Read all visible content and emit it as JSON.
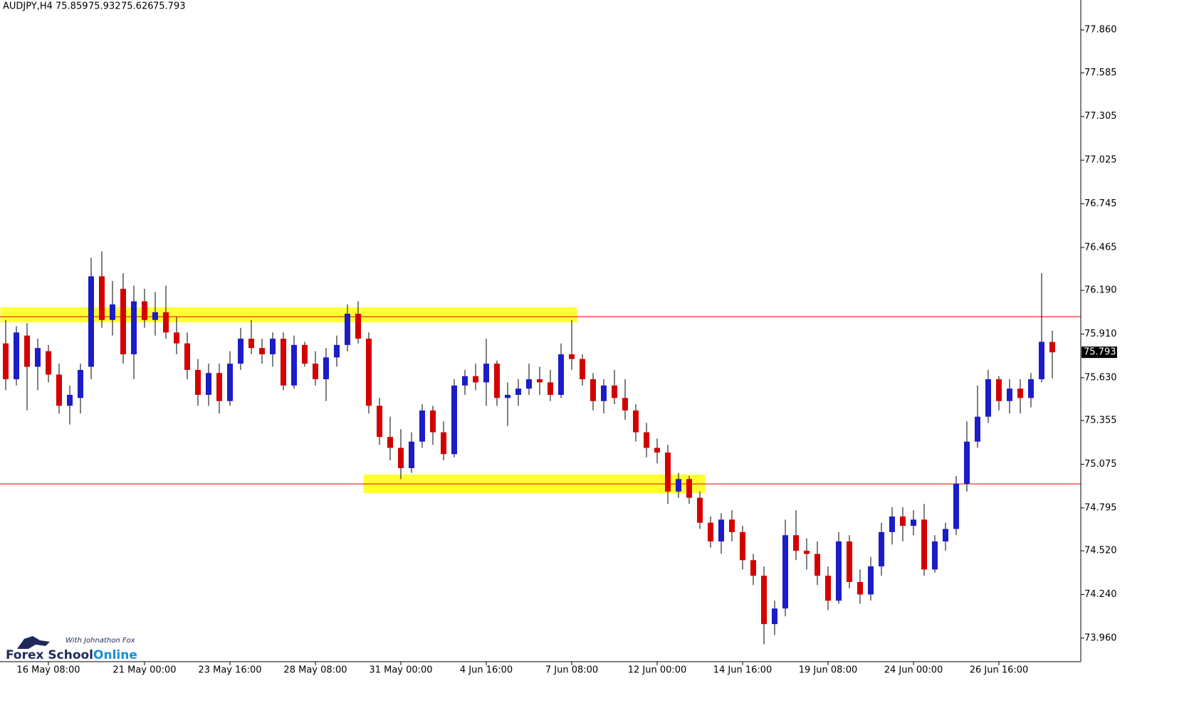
{
  "chart_data": {
    "type": "candlestick",
    "title": "AUDJPY,H4",
    "categories": [
      null,
      null,
      null,
      null,
      "16 May 08:00",
      null,
      null,
      null,
      null,
      null,
      null,
      null,
      null,
      "21 May 00:00",
      null,
      null,
      null,
      null,
      null,
      null,
      null,
      "23 May 16:00",
      null,
      null,
      null,
      null,
      null,
      null,
      null,
      "28 May 08:00",
      null,
      null,
      null,
      null,
      null,
      null,
      null,
      "31 May 00:00",
      null,
      null,
      null,
      null,
      null,
      null,
      null,
      "4 Jun 16:00",
      null,
      null,
      null,
      null,
      null,
      null,
      null,
      "7 Jun 08:00",
      null,
      null,
      null,
      null,
      null,
      null,
      null,
      "12 Jun 00:00",
      null,
      null,
      null,
      null,
      null,
      null,
      null,
      "14 Jun 16:00",
      null,
      null,
      null,
      null,
      null,
      null,
      null,
      "19 Jun 08:00",
      null,
      null,
      null,
      null,
      null,
      null,
      null,
      "24 Jun 00:00",
      null,
      null,
      null,
      null,
      null,
      null,
      null,
      "26 Jun 16:00",
      null,
      null,
      null,
      null,
      null
    ],
    "open": [
      75.85,
      75.62,
      75.9,
      75.7,
      75.8,
      75.65,
      75.45,
      75.5,
      75.7,
      76.28,
      76.0,
      76.2,
      75.78,
      76.12,
      76.0,
      76.05,
      75.92,
      75.85,
      75.68,
      75.52,
      75.66,
      75.48,
      75.72,
      75.88,
      75.82,
      75.78,
      75.88,
      75.58,
      75.84,
      75.72,
      75.62,
      75.76,
      75.84,
      76.04,
      75.88,
      75.45,
      75.25,
      75.18,
      75.05,
      75.22,
      75.42,
      75.28,
      75.14,
      75.58,
      75.64,
      75.6,
      75.72,
      75.5,
      75.52,
      75.56,
      75.62,
      75.6,
      75.52,
      75.78,
      75.75,
      75.62,
      75.48,
      75.58,
      75.5,
      75.42,
      75.28,
      75.18,
      75.15,
      74.9,
      74.98,
      74.86,
      74.7,
      74.58,
      74.72,
      74.64,
      74.46,
      74.36,
      74.05,
      74.15,
      74.62,
      74.52,
      74.5,
      74.36,
      74.2,
      74.58,
      74.32,
      74.24,
      74.42,
      74.64,
      74.74,
      74.68,
      74.72,
      74.4,
      74.58,
      74.66,
      74.95,
      75.22,
      75.38,
      75.62,
      75.48,
      75.56,
      75.5,
      75.62,
      75.859
    ],
    "high": [
      76.0,
      75.96,
      75.98,
      75.88,
      75.84,
      75.72,
      75.58,
      75.72,
      76.4,
      76.44,
      76.25,
      76.3,
      76.22,
      76.2,
      76.18,
      76.22,
      76.02,
      75.92,
      75.75,
      75.72,
      75.72,
      75.8,
      75.95,
      76.0,
      75.88,
      75.92,
      75.92,
      75.9,
      75.86,
      75.8,
      75.82,
      75.9,
      76.1,
      76.12,
      75.92,
      75.5,
      75.38,
      75.3,
      75.28,
      75.46,
      75.45,
      75.35,
      75.62,
      75.68,
      75.72,
      75.88,
      75.74,
      75.6,
      75.62,
      75.72,
      75.7,
      75.68,
      75.85,
      76.0,
      75.78,
      75.66,
      75.62,
      75.68,
      75.62,
      75.46,
      75.34,
      75.24,
      75.2,
      75.02,
      75.0,
      74.9,
      74.74,
      74.76,
      74.78,
      74.68,
      74.5,
      74.42,
      74.2,
      74.72,
      74.78,
      74.6,
      74.58,
      74.42,
      74.64,
      74.62,
      74.4,
      74.48,
      74.7,
      74.8,
      74.8,
      74.78,
      74.82,
      74.62,
      74.7,
      75.0,
      75.35,
      75.58,
      75.68,
      75.64,
      75.62,
      75.62,
      75.66,
      76.3,
      75.932
    ],
    "low": [
      75.55,
      75.58,
      75.42,
      75.55,
      75.6,
      75.4,
      75.33,
      75.4,
      75.62,
      75.95,
      75.9,
      75.72,
      75.62,
      75.95,
      75.9,
      75.88,
      75.78,
      75.62,
      75.45,
      75.45,
      75.4,
      75.45,
      75.68,
      75.78,
      75.72,
      75.7,
      75.55,
      75.56,
      75.7,
      75.58,
      75.48,
      75.7,
      75.8,
      75.85,
      75.4,
      75.2,
      75.1,
      74.98,
      75.02,
      75.18,
      75.2,
      75.1,
      75.12,
      75.52,
      75.55,
      75.45,
      75.45,
      75.32,
      75.45,
      75.52,
      75.52,
      75.48,
      75.5,
      75.68,
      75.58,
      75.42,
      75.4,
      75.46,
      75.36,
      75.22,
      75.12,
      75.08,
      74.82,
      74.86,
      74.82,
      74.66,
      74.54,
      74.5,
      74.58,
      74.4,
      74.3,
      73.92,
      73.98,
      74.1,
      74.46,
      74.4,
      74.3,
      74.14,
      74.18,
      74.28,
      74.18,
      74.2,
      74.36,
      74.56,
      74.58,
      74.62,
      74.36,
      74.38,
      74.52,
      74.62,
      74.9,
      75.18,
      75.34,
      75.42,
      75.4,
      75.4,
      75.44,
      75.6,
      75.626
    ],
    "close": [
      75.62,
      75.92,
      75.7,
      75.82,
      75.65,
      75.45,
      75.52,
      75.68,
      76.28,
      76.0,
      76.1,
      75.78,
      76.12,
      76.0,
      76.05,
      75.92,
      75.85,
      75.68,
      75.52,
      75.66,
      75.48,
      75.72,
      75.88,
      75.82,
      75.78,
      75.88,
      75.58,
      75.84,
      75.72,
      75.62,
      75.76,
      75.84,
      76.04,
      75.88,
      75.45,
      75.25,
      75.18,
      75.05,
      75.22,
      75.42,
      75.28,
      75.14,
      75.58,
      75.64,
      75.6,
      75.72,
      75.5,
      75.52,
      75.56,
      75.62,
      75.6,
      75.52,
      75.78,
      75.75,
      75.62,
      75.48,
      75.58,
      75.5,
      75.42,
      75.28,
      75.18,
      75.15,
      74.9,
      74.98,
      74.86,
      74.7,
      74.58,
      74.72,
      74.64,
      74.46,
      74.36,
      74.05,
      74.15,
      74.62,
      74.52,
      74.5,
      74.36,
      74.2,
      74.58,
      74.32,
      74.24,
      74.42,
      74.64,
      74.74,
      74.68,
      74.72,
      74.4,
      74.58,
      74.66,
      74.95,
      75.22,
      75.38,
      75.62,
      75.48,
      75.56,
      75.5,
      75.62,
      75.86,
      75.793
    ],
    "up_color": "#1c1cc8",
    "down_color": "#d40000",
    "wick_color": "#000000",
    "ylim": [
      73.809,
      78.052
    ],
    "yticks": [
      {
        "value": 77.86,
        "label": "77.860"
      },
      77.585,
      77.305,
      77.025,
      76.745,
      76.465,
      {
        "value": 76.19,
        "label": "76.190"
      },
      {
        "value": 75.91,
        "label": "75.910"
      },
      {
        "value": 75.63,
        "label": "75.630"
      },
      75.355,
      75.075,
      74.795,
      {
        "value": 74.52,
        "label": "74.520"
      },
      {
        "value": 74.24,
        "label": "74.240"
      },
      {
        "value": 73.96,
        "label": "73.960"
      }
    ],
    "hlines": [
      76.021,
      74.949
    ],
    "hline_color": "#e00000",
    "zones": [
      {
        "from": 0,
        "to": 53,
        "ylim": [
          75.985,
          76.081
        ]
      },
      {
        "from": 34,
        "to": 65,
        "ylim": [
          74.89,
          75.009
        ]
      }
    ],
    "zone_color": "#ffff33"
  },
  "logo": {
    "subtitle": "With Johnathon Fox",
    "title": "Forex School",
    "title_accent": "Online"
  }
}
